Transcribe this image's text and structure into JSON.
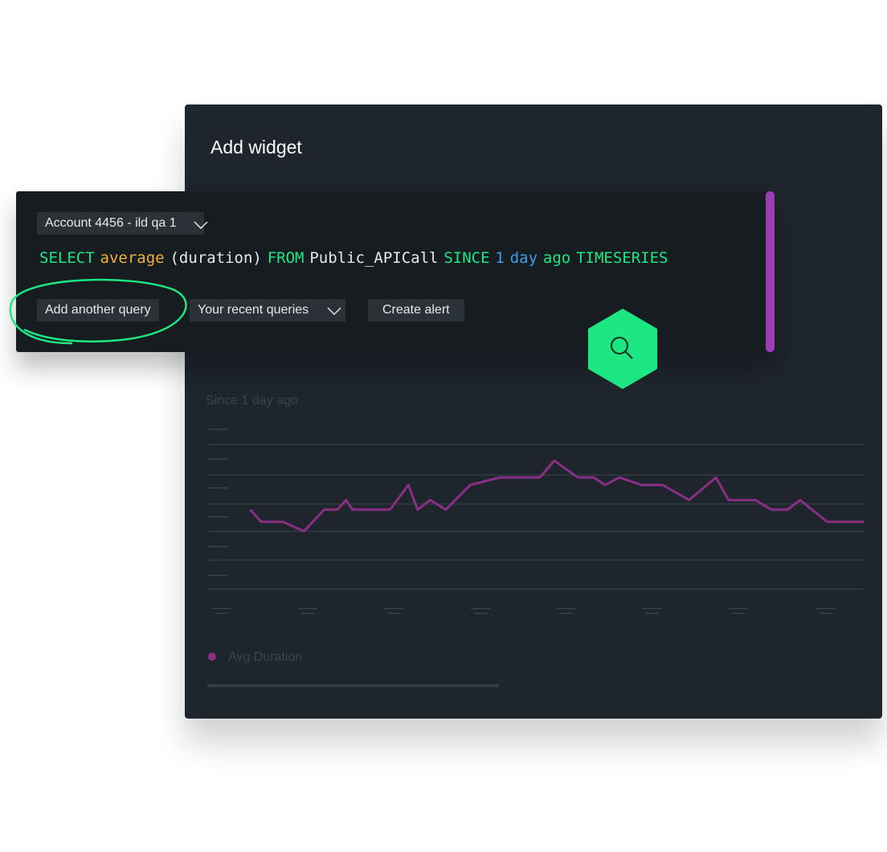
{
  "header": {
    "title": "Add widget"
  },
  "query_editor": {
    "account": "Account 4456 - ild qa 1",
    "tokens": [
      {
        "text": "SELECT",
        "color": "#1ce783"
      },
      {
        "text": "average",
        "color": "#f0b03a"
      },
      {
        "text": "(duration)",
        "color": "#e6e8e9"
      },
      {
        "text": "FROM",
        "color": "#1ce783"
      },
      {
        "text": "Public_APICall",
        "color": "#e6e8e9"
      },
      {
        "text": "SINCE",
        "color": "#1ce783"
      },
      {
        "text": "1",
        "color": "#3d9ee8"
      },
      {
        "text": "day",
        "color": "#3d9ee8"
      },
      {
        "text": "ago",
        "color": "#1ce783"
      },
      {
        "text": "TIMESERIES",
        "color": "#1ce783"
      }
    ],
    "buttons": [
      "Add another query",
      "Your recent queries",
      "Create alert"
    ]
  },
  "chart_data": {
    "type": "line",
    "subtitle": "Since 1 day ago",
    "xlim": [
      0,
      100
    ],
    "ylim": [
      0,
      5
    ],
    "x": [
      6.5,
      8.2,
      11.5,
      14.7,
      17.8,
      19.8,
      21.1,
      22.1,
      27.8,
      30.6,
      32.0,
      33.9,
      36.3,
      40.0,
      44.5,
      50.6,
      52.8,
      56.4,
      58.8,
      60.5,
      62.7,
      66.1,
      69.3,
      73.3,
      77.4,
      79.3,
      83.4,
      85.8,
      88.3,
      90.2,
      94.3,
      99.9
    ],
    "series": [
      {
        "name": "Avg Duration",
        "color": "#8a2f84",
        "values": [
          2.75,
          2.33,
          2.33,
          2.0,
          2.75,
          2.75,
          3.08,
          2.75,
          2.75,
          3.6,
          2.75,
          3.08,
          2.75,
          3.6,
          3.86,
          3.86,
          4.44,
          3.86,
          3.86,
          3.6,
          3.86,
          3.6,
          3.6,
          3.08,
          3.86,
          3.08,
          3.08,
          2.75,
          2.75,
          3.08,
          2.33,
          2.33
        ]
      }
    ]
  }
}
